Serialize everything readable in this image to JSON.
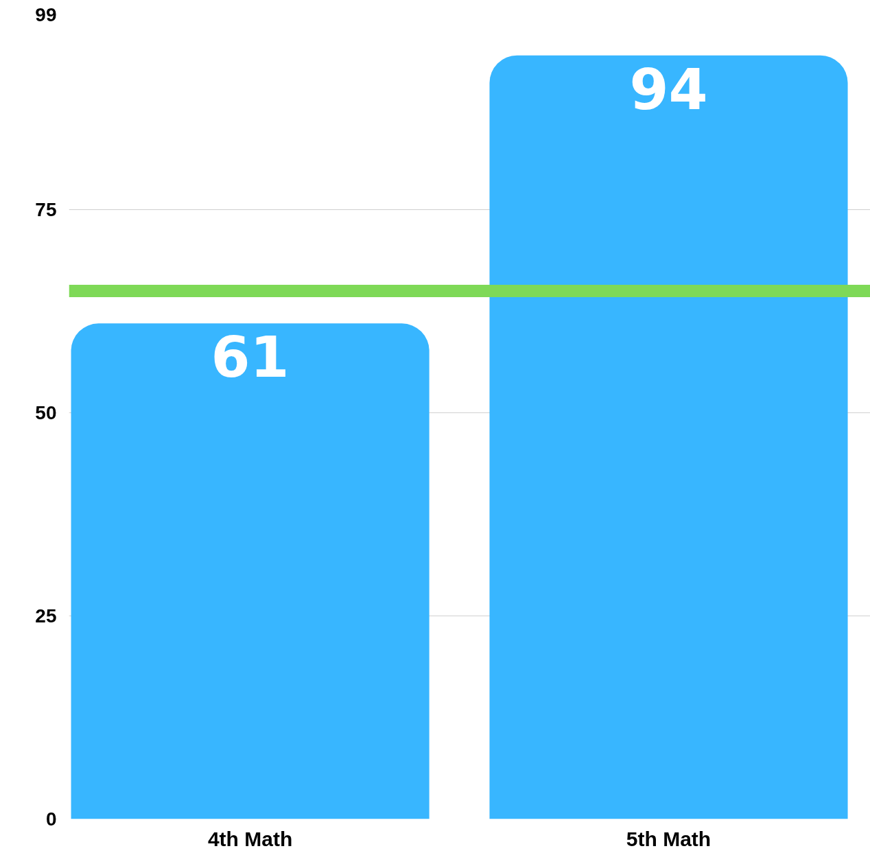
{
  "chart_data": {
    "type": "bar",
    "categories": [
      "4th Math",
      "5th Math"
    ],
    "values": [
      61,
      94
    ],
    "color": "#38b6ff",
    "ylim": [
      0,
      99
    ],
    "yticks": [
      0,
      25,
      50,
      75,
      99
    ],
    "grid": "y",
    "data_labels": true,
    "ref_lines": [
      {
        "axis": "y",
        "value": 65,
        "color": "#7ed957"
      }
    ]
  }
}
